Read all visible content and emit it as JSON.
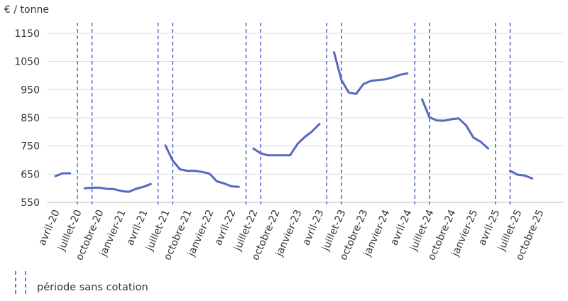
{
  "chart_data": {
    "type": "line",
    "ylabel": "€ / tonne",
    "ylim": [
      550,
      1150
    ],
    "yticks": [
      550,
      650,
      750,
      850,
      950,
      1050,
      1150
    ],
    "grid": true,
    "x_tick_labels": [
      {
        "label": "avril-20",
        "month_index": 0
      },
      {
        "label": "juillet-20",
        "month_index": 3
      },
      {
        "label": "octobre-20",
        "month_index": 6
      },
      {
        "label": "janvier-21",
        "month_index": 9
      },
      {
        "label": "avril-21",
        "month_index": 12
      },
      {
        "label": "juillet-21",
        "month_index": 15
      },
      {
        "label": "octobre-21",
        "month_index": 18
      },
      {
        "label": "janvier-22",
        "month_index": 21
      },
      {
        "label": "avril-22",
        "month_index": 24
      },
      {
        "label": "juillet-22",
        "month_index": 27
      },
      {
        "label": "octobre-22",
        "month_index": 30
      },
      {
        "label": "janvier-23",
        "month_index": 33
      },
      {
        "label": "avril-23",
        "month_index": 36
      },
      {
        "label": "juillet-23",
        "month_index": 39
      },
      {
        "label": "octobre-23",
        "month_index": 42
      },
      {
        "label": "janvier-24",
        "month_index": 45
      },
      {
        "label": "avril-24",
        "month_index": 48
      },
      {
        "label": "juillet-24",
        "month_index": 51
      },
      {
        "label": "octobre-24",
        "month_index": 54
      },
      {
        "label": "janvier-25",
        "month_index": 57
      },
      {
        "label": "avril-25",
        "month_index": 60
      },
      {
        "label": "juillet-25",
        "month_index": 63
      },
      {
        "label": "octobre-25",
        "month_index": 66
      }
    ],
    "series": [
      {
        "color": "#5469c0",
        "segments": [
          {
            "x": [
              0,
              1,
              2
            ],
            "y": [
              643,
              653,
              653
            ]
          },
          {
            "x": [
              4,
              5,
              6,
              7,
              8,
              9,
              10,
              11,
              12,
              13
            ],
            "y": [
              600,
              602,
              602,
              598,
              597,
              590,
              587,
              598,
              605,
              615
            ]
          },
          {
            "x": [
              15,
              16,
              17,
              18,
              19,
              20,
              21,
              22,
              23,
              24,
              25
            ],
            "y": [
              752,
              698,
              667,
              662,
              662,
              658,
              652,
              625,
              617,
              607,
              605
            ]
          },
          {
            "x": [
              27,
              28,
              29,
              30,
              31,
              32,
              33,
              34,
              35,
              36
            ],
            "y": [
              741,
              724,
              717,
              717,
              717,
              717,
              757,
              782,
              802,
              828
            ]
          },
          {
            "x": [
              38,
              39,
              40,
              41,
              42,
              43,
              44,
              45,
              46,
              47,
              48
            ],
            "y": [
              1083,
              984,
              940,
              935,
              970,
              981,
              984,
              987,
              994,
              1003,
              1008
            ]
          },
          {
            "x": [
              50,
              51,
              52,
              53,
              54,
              55,
              56,
              57,
              58,
              59
            ],
            "y": [
              916,
              852,
              841,
              840,
              845,
              848,
              823,
              780,
              765,
              741
            ]
          },
          {
            "x": [
              62,
              63,
              64,
              65
            ],
            "y": [
              662,
              648,
              645,
              635
            ]
          }
        ]
      }
    ],
    "no_quote_markers": [
      3,
      5,
      14,
      16,
      26,
      28,
      37,
      39,
      49,
      51,
      60,
      62
    ],
    "legend": {
      "label": "période sans cotation",
      "style": "dashed",
      "color": "#3d55c4",
      "placement": "bottom-left"
    }
  }
}
